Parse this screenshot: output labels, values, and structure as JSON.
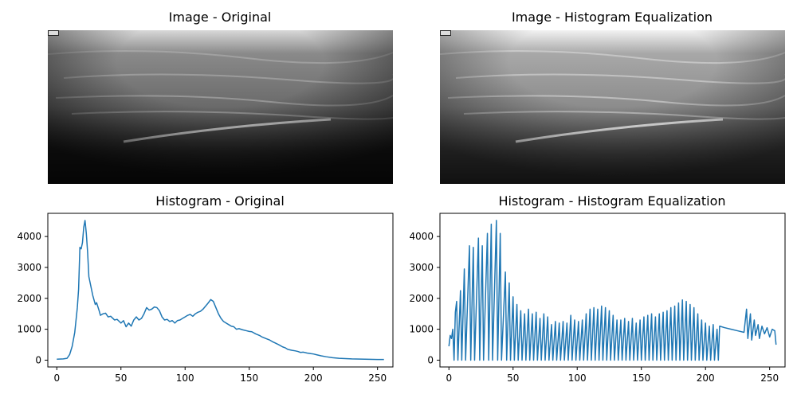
{
  "figure": {
    "titles": {
      "image_original": "Image - Original",
      "image_equalized": "Image - Histogram Equalization",
      "hist_original": "Histogram - Original",
      "hist_equalized": "Histogram - Histogram Equalization"
    }
  },
  "colors": {
    "line": "#1f77b4",
    "axes": "#000000",
    "background": "#ffffff"
  },
  "chart_data": [
    {
      "type": "line",
      "title": "Histogram - Original",
      "xlim": [
        -7,
        262
      ],
      "ylim": [
        -220,
        4750
      ],
      "xticks": [
        0,
        50,
        100,
        150,
        200,
        250
      ],
      "yticks": [
        0,
        1000,
        2000,
        3000,
        4000
      ],
      "grid": false,
      "points": [
        [
          0,
          30
        ],
        [
          5,
          40
        ],
        [
          8,
          60
        ],
        [
          10,
          180
        ],
        [
          12,
          450
        ],
        [
          14,
          900
        ],
        [
          16,
          1700
        ],
        [
          17,
          2300
        ],
        [
          18,
          3650
        ],
        [
          19,
          3600
        ],
        [
          20,
          3800
        ],
        [
          21,
          4300
        ],
        [
          22,
          4520
        ],
        [
          23,
          4100
        ],
        [
          24,
          3500
        ],
        [
          25,
          2700
        ],
        [
          27,
          2300
        ],
        [
          28,
          2100
        ],
        [
          30,
          1800
        ],
        [
          31,
          1860
        ],
        [
          33,
          1600
        ],
        [
          34,
          1450
        ],
        [
          36,
          1500
        ],
        [
          38,
          1520
        ],
        [
          40,
          1400
        ],
        [
          42,
          1420
        ],
        [
          45,
          1300
        ],
        [
          47,
          1320
        ],
        [
          50,
          1200
        ],
        [
          52,
          1280
        ],
        [
          54,
          1080
        ],
        [
          56,
          1200
        ],
        [
          58,
          1100
        ],
        [
          60,
          1300
        ],
        [
          62,
          1400
        ],
        [
          64,
          1300
        ],
        [
          66,
          1350
        ],
        [
          68,
          1500
        ],
        [
          70,
          1700
        ],
        [
          72,
          1620
        ],
        [
          74,
          1650
        ],
        [
          76,
          1720
        ],
        [
          78,
          1700
        ],
        [
          80,
          1600
        ],
        [
          82,
          1400
        ],
        [
          84,
          1300
        ],
        [
          86,
          1320
        ],
        [
          88,
          1250
        ],
        [
          90,
          1280
        ],
        [
          92,
          1200
        ],
        [
          94,
          1280
        ],
        [
          96,
          1300
        ],
        [
          98,
          1350
        ],
        [
          100,
          1400
        ],
        [
          102,
          1450
        ],
        [
          104,
          1480
        ],
        [
          106,
          1420
        ],
        [
          108,
          1500
        ],
        [
          110,
          1550
        ],
        [
          112,
          1580
        ],
        [
          114,
          1650
        ],
        [
          116,
          1750
        ],
        [
          118,
          1850
        ],
        [
          120,
          1960
        ],
        [
          122,
          1900
        ],
        [
          124,
          1700
        ],
        [
          126,
          1500
        ],
        [
          128,
          1350
        ],
        [
          130,
          1250
        ],
        [
          132,
          1200
        ],
        [
          134,
          1150
        ],
        [
          136,
          1100
        ],
        [
          138,
          1080
        ],
        [
          140,
          1000
        ],
        [
          142,
          1020
        ],
        [
          145,
          980
        ],
        [
          148,
          950
        ],
        [
          150,
          930
        ],
        [
          152,
          920
        ],
        [
          155,
          850
        ],
        [
          158,
          800
        ],
        [
          160,
          750
        ],
        [
          163,
          700
        ],
        [
          166,
          650
        ],
        [
          168,
          600
        ],
        [
          170,
          560
        ],
        [
          173,
          500
        ],
        [
          176,
          430
        ],
        [
          178,
          400
        ],
        [
          180,
          350
        ],
        [
          183,
          320
        ],
        [
          186,
          300
        ],
        [
          188,
          280
        ],
        [
          190,
          250
        ],
        [
          192,
          260
        ],
        [
          195,
          230
        ],
        [
          198,
          210
        ],
        [
          200,
          200
        ],
        [
          203,
          170
        ],
        [
          206,
          140
        ],
        [
          210,
          110
        ],
        [
          215,
          80
        ],
        [
          220,
          60
        ],
        [
          230,
          40
        ],
        [
          240,
          30
        ],
        [
          250,
          20
        ],
        [
          255,
          20
        ]
      ]
    },
    {
      "type": "line",
      "title": "Histogram - Histogram Equalization",
      "xlim": [
        -7,
        262
      ],
      "ylim": [
        -220,
        4750
      ],
      "xticks": [
        0,
        50,
        100,
        150,
        200,
        250
      ],
      "yticks": [
        0,
        1000,
        2000,
        3000,
        4000
      ],
      "grid": false,
      "points": [
        [
          0,
          450
        ],
        [
          1,
          800
        ],
        [
          2,
          700
        ],
        [
          3,
          1000
        ],
        [
          4,
          0
        ],
        [
          5,
          1550
        ],
        [
          6,
          1900
        ],
        [
          7,
          0
        ],
        [
          9,
          2250
        ],
        [
          10,
          0
        ],
        [
          12,
          2950
        ],
        [
          13,
          0
        ],
        [
          16,
          3700
        ],
        [
          17,
          0
        ],
        [
          19,
          3650
        ],
        [
          20,
          0
        ],
        [
          23,
          3950
        ],
        [
          24,
          0
        ],
        [
          26,
          3700
        ],
        [
          27,
          0
        ],
        [
          30,
          4100
        ],
        [
          31,
          0
        ],
        [
          33,
          4400
        ],
        [
          34,
          0
        ],
        [
          37,
          4520
        ],
        [
          38,
          0
        ],
        [
          40,
          4100
        ],
        [
          41,
          0
        ],
        [
          44,
          2850
        ],
        [
          45,
          0
        ],
        [
          47,
          2500
        ],
        [
          48,
          0
        ],
        [
          50,
          2050
        ],
        [
          51,
          0
        ],
        [
          53,
          1800
        ],
        [
          54,
          0
        ],
        [
          56,
          1600
        ],
        [
          57,
          0
        ],
        [
          59,
          1500
        ],
        [
          60,
          0
        ],
        [
          62,
          1650
        ],
        [
          63,
          0
        ],
        [
          65,
          1500
        ],
        [
          66,
          0
        ],
        [
          68,
          1550
        ],
        [
          69,
          0
        ],
        [
          71,
          1350
        ],
        [
          72,
          0
        ],
        [
          74,
          1500
        ],
        [
          75,
          0
        ],
        [
          77,
          1400
        ],
        [
          78,
          0
        ],
        [
          80,
          1150
        ],
        [
          81,
          0
        ],
        [
          83,
          1250
        ],
        [
          84,
          0
        ],
        [
          86,
          1200
        ],
        [
          87,
          0
        ],
        [
          89,
          1250
        ],
        [
          90,
          0
        ],
        [
          92,
          1200
        ],
        [
          93,
          0
        ],
        [
          95,
          1450
        ],
        [
          96,
          0
        ],
        [
          98,
          1300
        ],
        [
          99,
          0
        ],
        [
          101,
          1250
        ],
        [
          102,
          0
        ],
        [
          104,
          1300
        ],
        [
          105,
          0
        ],
        [
          107,
          1500
        ],
        [
          108,
          0
        ],
        [
          110,
          1650
        ],
        [
          111,
          0
        ],
        [
          113,
          1700
        ],
        [
          114,
          0
        ],
        [
          116,
          1650
        ],
        [
          117,
          0
        ],
        [
          119,
          1750
        ],
        [
          120,
          0
        ],
        [
          122,
          1700
        ],
        [
          123,
          0
        ],
        [
          125,
          1600
        ],
        [
          126,
          0
        ],
        [
          128,
          1450
        ],
        [
          129,
          0
        ],
        [
          131,
          1300
        ],
        [
          132,
          0
        ],
        [
          134,
          1300
        ],
        [
          135,
          0
        ],
        [
          137,
          1350
        ],
        [
          138,
          0
        ],
        [
          140,
          1250
        ],
        [
          141,
          0
        ],
        [
          143,
          1350
        ],
        [
          144,
          0
        ],
        [
          146,
          1200
        ],
        [
          147,
          0
        ],
        [
          149,
          1300
        ],
        [
          150,
          0
        ],
        [
          152,
          1400
        ],
        [
          153,
          0
        ],
        [
          155,
          1450
        ],
        [
          156,
          0
        ],
        [
          158,
          1500
        ],
        [
          159,
          0
        ],
        [
          161,
          1400
        ],
        [
          162,
          0
        ],
        [
          164,
          1500
        ],
        [
          165,
          0
        ],
        [
          167,
          1550
        ],
        [
          168,
          0
        ],
        [
          170,
          1600
        ],
        [
          171,
          0
        ],
        [
          173,
          1700
        ],
        [
          174,
          0
        ],
        [
          176,
          1750
        ],
        [
          177,
          0
        ],
        [
          179,
          1850
        ],
        [
          180,
          0
        ],
        [
          182,
          1950
        ],
        [
          183,
          0
        ],
        [
          185,
          1900
        ],
        [
          186,
          0
        ],
        [
          188,
          1800
        ],
        [
          189,
          0
        ],
        [
          191,
          1700
        ],
        [
          192,
          0
        ],
        [
          194,
          1500
        ],
        [
          195,
          0
        ],
        [
          197,
          1300
        ],
        [
          198,
          0
        ],
        [
          200,
          1200
        ],
        [
          201,
          0
        ],
        [
          203,
          1100
        ],
        [
          204,
          0
        ],
        [
          206,
          1150
        ],
        [
          207,
          0
        ],
        [
          209,
          1000
        ],
        [
          210,
          0
        ],
        [
          211,
          1100
        ],
        [
          215,
          1050
        ],
        [
          220,
          1000
        ],
        [
          225,
          950
        ],
        [
          230,
          900
        ],
        [
          232,
          1650
        ],
        [
          233,
          700
        ],
        [
          235,
          1500
        ],
        [
          236,
          650
        ],
        [
          238,
          1300
        ],
        [
          239,
          800
        ],
        [
          241,
          1150
        ],
        [
          242,
          700
        ],
        [
          244,
          1100
        ],
        [
          246,
          850
        ],
        [
          248,
          1050
        ],
        [
          250,
          750
        ],
        [
          252,
          1000
        ],
        [
          254,
          950
        ],
        [
          255,
          500
        ]
      ]
    }
  ]
}
